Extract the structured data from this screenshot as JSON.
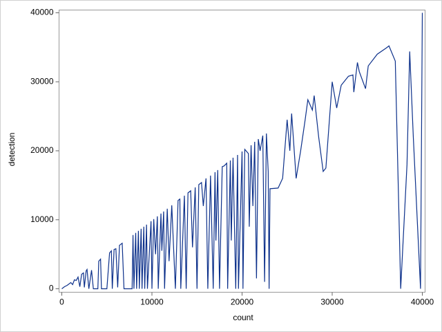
{
  "chart_data": {
    "type": "line",
    "x_label": "count",
    "y_label": "detection",
    "xlim": [
      -306,
      40306
    ],
    "ylim": [
      -501,
      40401
    ],
    "xticks": [
      0,
      10000,
      20000,
      30000,
      40000
    ],
    "yticks": [
      0,
      10000,
      20000,
      30000,
      40000
    ],
    "grid": false,
    "x": [
      0,
      300,
      600,
      1000,
      1200,
      1400,
      1600,
      1800,
      2000,
      2200,
      2400,
      2500,
      2700,
      2800,
      3000,
      3300,
      3500,
      4000,
      4100,
      4300,
      4400,
      5000,
      5300,
      5500,
      5600,
      5800,
      6000,
      6200,
      6400,
      6700,
      6900,
      7800,
      7900,
      8000,
      8200,
      8300,
      8500,
      8600,
      8800,
      8900,
      9100,
      9200,
      9400,
      9500,
      9900,
      10000,
      10200,
      10400,
      10600,
      10700,
      11000,
      11100,
      11300,
      11400,
      11700,
      11900,
      12200,
      12400,
      12600,
      12900,
      13100,
      13200,
      13600,
      13800,
      14000,
      14300,
      14500,
      14800,
      15000,
      15200,
      15500,
      15700,
      16000,
      16200,
      16500,
      16800,
      17000,
      17100,
      17300,
      17500,
      17800,
      18000,
      18300,
      18400,
      18700,
      18800,
      19000,
      19300,
      19500,
      19600,
      20000,
      20100,
      20300,
      20700,
      20800,
      21000,
      21200,
      21400,
      21600,
      21800,
      22000,
      22300,
      22500,
      22700,
      22900,
      23000,
      23100,
      24000,
      24500,
      25000,
      25300,
      25500,
      26000,
      26500,
      27000,
      27300,
      27800,
      28000,
      28500,
      29000,
      29300,
      30000,
      30500,
      31000,
      31800,
      32300,
      32400,
      32800,
      33000,
      33700,
      34000,
      35000,
      36000,
      36300,
      37000,
      37600,
      38300,
      38600,
      39000,
      39800,
      40000
    ],
    "series": [
      {
        "name": "detection",
        "color": "#0b2f8a",
        "values": [
          0,
          300,
          500,
          900,
          600,
          1300,
          1200,
          1700,
          300,
          2100,
          2300,
          200,
          2600,
          2800,
          0,
          2700,
          0,
          0,
          4000,
          4300,
          0,
          0,
          5200,
          5500,
          0,
          5700,
          5800,
          200,
          6300,
          6600,
          0,
          0,
          7800,
          0,
          8100,
          0,
          8400,
          0,
          8700,
          0,
          9000,
          0,
          9300,
          0,
          9800,
          0,
          10100,
          5000,
          10500,
          0,
          10900,
          5500,
          11200,
          0,
          11600,
          4000,
          12100,
          6000,
          0,
          12800,
          13000,
          0,
          13500,
          0,
          13900,
          14200,
          6000,
          14700,
          0,
          15100,
          15400,
          12000,
          16000,
          0,
          16400,
          0,
          16900,
          7000,
          17200,
          0,
          17700,
          17800,
          18200,
          0,
          18600,
          7000,
          19000,
          0,
          19400,
          0,
          19900,
          0,
          20200,
          19600,
          9000,
          20800,
          12000,
          21300,
          1500,
          21700,
          20000,
          22200,
          1000,
          22500,
          17000,
          0,
          14500,
          14600,
          16000,
          24500,
          20000,
          25400,
          16000,
          20000,
          24500,
          27400,
          25900,
          28000,
          22000,
          17000,
          17500,
          30000,
          26200,
          29500,
          30800,
          31000,
          28500,
          32800,
          31500,
          29000,
          32300,
          34000,
          34900,
          35200,
          33000,
          0,
          18000,
          34400,
          22000,
          0,
          40000
        ]
      }
    ]
  }
}
